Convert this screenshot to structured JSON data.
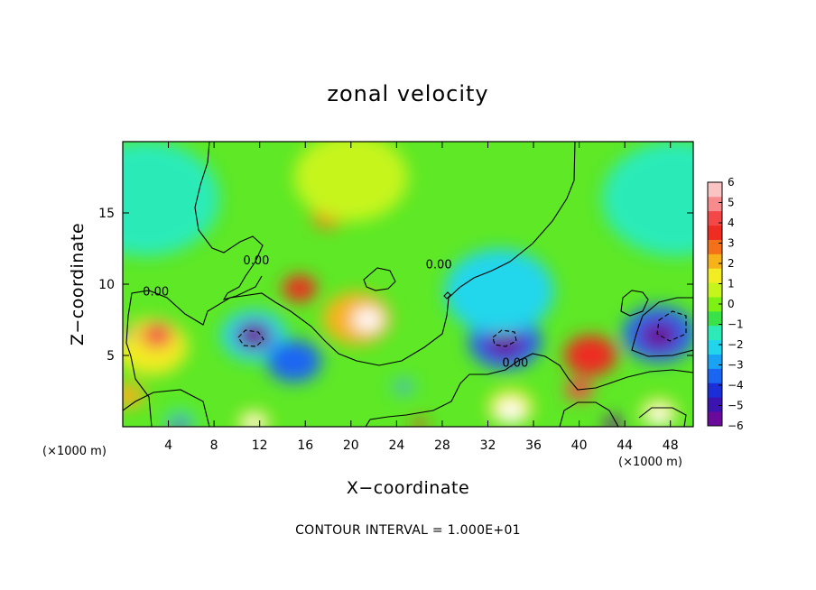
{
  "chart_data": {
    "type": "heatmap",
    "title": "zonal velocity",
    "xlabel": "X−coordinate",
    "ylabel": "Z−coordinate",
    "x_unit_left": "(×1000 m)",
    "x_unit_right": "(×1000 m)",
    "footer": "CONTOUR INTERVAL = 1.000E+01",
    "xlim": [
      0,
      50
    ],
    "ylim": [
      0,
      20
    ],
    "x_ticks": [
      4,
      8,
      12,
      16,
      20,
      24,
      28,
      32,
      36,
      40,
      44,
      48
    ],
    "y_ticks": [
      5,
      10,
      15
    ],
    "x_tick_labels": [
      "4",
      "8",
      "12",
      "16",
      "20",
      "24",
      "28",
      "32",
      "36",
      "40",
      "44",
      "48"
    ],
    "y_tick_labels": [
      "5",
      "10",
      "15"
    ],
    "colorbar": {
      "min": -6,
      "max": 6,
      "labels": [
        "6",
        "5",
        "4",
        "3",
        "2",
        "1",
        "0",
        "−1",
        "−2",
        "−3",
        "−4",
        "−5",
        "−6"
      ],
      "colors": [
        "#6a0a9a",
        "#3a13b0",
        "#1b2fd8",
        "#1a66f2",
        "#1aa2f5",
        "#21d6ec",
        "#2cebb8",
        "#3ae24a",
        "#7df212",
        "#c6f51c",
        "#f2ec22",
        "#f7b21a",
        "#f47118",
        "#ee2c22",
        "#f44848",
        "#f78a8a",
        "#fac4c4"
      ]
    },
    "contour_labels": [
      {
        "text": "0.00",
        "x": 2.9,
        "y": 9.2
      },
      {
        "text": "0.00",
        "x": 11.7,
        "y": 11.4
      },
      {
        "text": "0.00",
        "x": 27.7,
        "y": 11.1
      },
      {
        "text": "0.00",
        "x": 34.4,
        "y": 4.2
      }
    ],
    "features": [
      {
        "x": 2.5,
        "y": 5.6,
        "a": 3.2,
        "v": 1.6
      },
      {
        "x": 3.0,
        "y": 6.4,
        "a": 1.4,
        "v": 4.5
      },
      {
        "x": 11.5,
        "y": 6.4,
        "a": 2.9,
        "v": -2.2
      },
      {
        "x": 11.5,
        "y": 6.4,
        "a": 1.6,
        "v": -6.5
      },
      {
        "x": 20.5,
        "y": 7.6,
        "a": 3.0,
        "v": 2.4
      },
      {
        "x": 21.5,
        "y": 7.5,
        "a": 1.3,
        "v": 6.5
      },
      {
        "x": 15.5,
        "y": 9.7,
        "a": 1.5,
        "v": 3.5
      },
      {
        "x": 15.0,
        "y": 4.6,
        "a": 2.4,
        "v": -3.2
      },
      {
        "x": 24.6,
        "y": 2.8,
        "a": 1.0,
        "v": -1.3
      },
      {
        "x": 24.6,
        "y": 2.8,
        "a": 0.5,
        "v": -5.4
      },
      {
        "x": 33.5,
        "y": 6.0,
        "a": 3.2,
        "v": -3.4
      },
      {
        "x": 33.5,
        "y": 6.0,
        "a": 1.8,
        "v": -6.5
      },
      {
        "x": 33.0,
        "y": 9.5,
        "a": 4.8,
        "v": -1.8
      },
      {
        "x": 47.0,
        "y": 6.5,
        "a": 3.2,
        "v": -3.4
      },
      {
        "x": 47.0,
        "y": 6.4,
        "a": 1.7,
        "v": -6.5
      },
      {
        "x": 41.0,
        "y": 5.0,
        "a": 2.3,
        "v": 3.3
      },
      {
        "x": 40.0,
        "y": 2.6,
        "a": 1.2,
        "v": 4.5
      },
      {
        "x": 5.0,
        "y": 0.3,
        "a": 1.4,
        "v": -1.6
      },
      {
        "x": 5.0,
        "y": 0.1,
        "a": 0.8,
        "v": -6.5
      },
      {
        "x": 11.5,
        "y": 0.3,
        "a": 1.4,
        "v": 1.6
      },
      {
        "x": 11.5,
        "y": 0.2,
        "a": 0.8,
        "v": 6.5
      },
      {
        "x": 34.0,
        "y": 1.4,
        "a": 2.0,
        "v": 1.6
      },
      {
        "x": 34.0,
        "y": 1.1,
        "a": 1.2,
        "v": 6.5
      },
      {
        "x": 47.0,
        "y": 1.0,
        "a": 1.6,
        "v": 1.6
      },
      {
        "x": 47.0,
        "y": 0.8,
        "a": 1.0,
        "v": 6.5
      },
      {
        "x": 0.5,
        "y": 2.2,
        "a": 1.4,
        "v": 2.4
      },
      {
        "x": 0.3,
        "y": 6.6,
        "a": 0.5,
        "v": -5.5
      },
      {
        "x": 43.0,
        "y": 0.2,
        "a": 0.8,
        "v": -6.5
      },
      {
        "x": 18.0,
        "y": 14.8,
        "a": 1.4,
        "v": 2.7
      },
      {
        "x": 20.0,
        "y": 17.5,
        "a": 5.0,
        "v": 0.7
      },
      {
        "x": 2.0,
        "y": 16.0,
        "a": 6.5,
        "v": -1.4
      },
      {
        "x": 48.5,
        "y": 16.0,
        "a": 6.5,
        "v": -1.4
      },
      {
        "x": 26.0,
        "y": 0.2,
        "a": 0.6,
        "v": 3.5
      }
    ]
  }
}
